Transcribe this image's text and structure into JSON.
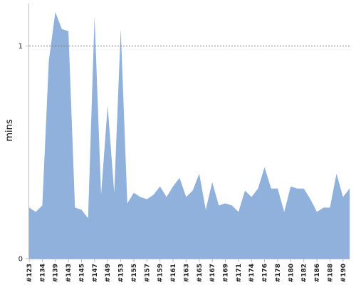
{
  "chart_data": {
    "type": "area",
    "ylabel": "mins",
    "ylim": [
      0,
      1.2
    ],
    "yticks": [
      0,
      1
    ],
    "reference_line": {
      "y": 1,
      "style": "dashed"
    },
    "grid": false,
    "fill_color": "#8fb1dc",
    "reference_line_color": "#777777",
    "axis_color": "#bbbbbb",
    "x_tick_labels": [
      "#123",
      "#134",
      "#139",
      "#143",
      "#145",
      "#147",
      "#149",
      "#153",
      "#155",
      "#157",
      "#159",
      "#161",
      "#163",
      "#165",
      "#167",
      "#169",
      "#171",
      "#174",
      "#176",
      "#178",
      "#180",
      "#182",
      "#186",
      "#188",
      "#190"
    ],
    "x_tick_index": [
      0,
      2,
      4,
      6,
      8,
      10,
      12,
      14,
      16,
      18,
      20,
      22,
      24,
      26,
      28,
      30,
      32,
      34,
      36,
      38,
      40,
      42,
      44,
      46,
      48
    ],
    "series": [
      {
        "values": [
          0.24,
          0.22,
          0.25,
          0.93,
          1.16,
          1.08,
          1.07,
          0.24,
          0.23,
          0.19,
          1.14,
          0.3,
          0.72,
          0.31,
          1.08,
          0.26,
          0.31,
          0.29,
          0.28,
          0.3,
          0.34,
          0.29,
          0.34,
          0.38,
          0.29,
          0.32,
          0.4,
          0.23,
          0.36,
          0.25,
          0.26,
          0.25,
          0.22,
          0.32,
          0.29,
          0.33,
          0.43,
          0.33,
          0.33,
          0.22,
          0.34,
          0.33,
          0.33,
          0.28,
          0.22,
          0.24,
          0.24,
          0.4,
          0.29,
          0.33
        ]
      }
    ]
  }
}
